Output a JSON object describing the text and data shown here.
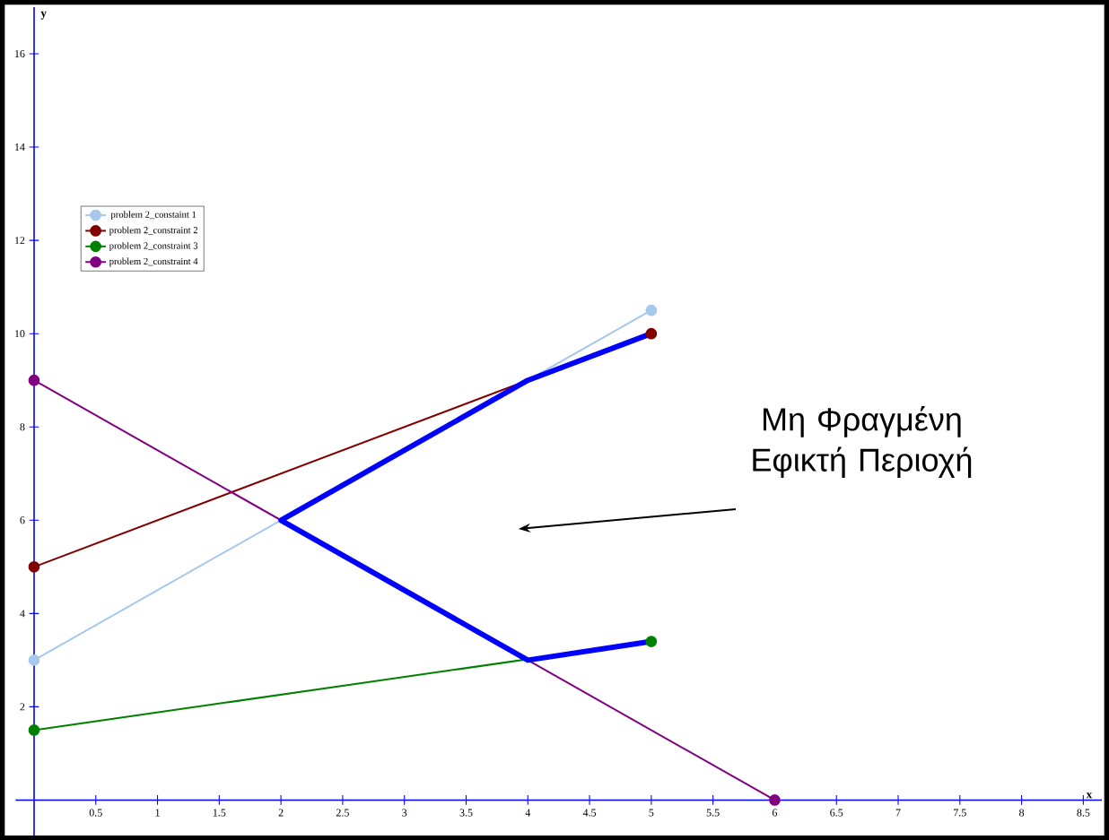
{
  "chart_data": {
    "type": "line",
    "xlabel": "x",
    "ylabel": "y",
    "xlim": [
      -0.15,
      8.65
    ],
    "ylim": [
      -0.76,
      17.0
    ],
    "xticks": [
      0.5,
      1,
      1.5,
      2,
      2.5,
      3,
      3.5,
      4,
      4.5,
      5,
      5.5,
      6,
      6.5,
      7,
      7.5,
      8,
      8.5
    ],
    "yticks": [
      2,
      4,
      6,
      8,
      10,
      12,
      14,
      16
    ],
    "grid": false,
    "legend": "left",
    "series": [
      {
        "name": "problem 2_constaint 1",
        "color": "#a6c8ec",
        "x": [
          0,
          5
        ],
        "values": [
          3,
          10.5
        ],
        "marker": "circle"
      },
      {
        "name": "problem 2_constraint 2",
        "color": "#800000",
        "x": [
          0,
          5
        ],
        "values": [
          5,
          10
        ],
        "marker": "circle"
      },
      {
        "name": "problem 2_constraint 3",
        "color": "#008000",
        "x": [
          0,
          5
        ],
        "values": [
          1.5,
          3.4
        ],
        "marker": "circle"
      },
      {
        "name": "problem 2_constraint 4",
        "color": "#800080",
        "x": [
          0,
          6
        ],
        "values": [
          9,
          0
        ],
        "marker": "circle"
      },
      {
        "color": "#0000ff",
        "x": [
          5,
          4,
          2,
          4,
          5
        ],
        "values": [
          10,
          9,
          6,
          3,
          3.4
        ],
        "marker": "none"
      }
    ],
    "annotations": [
      "Μη Φραγμένη Εφικτή Περιοχή"
    ]
  }
}
